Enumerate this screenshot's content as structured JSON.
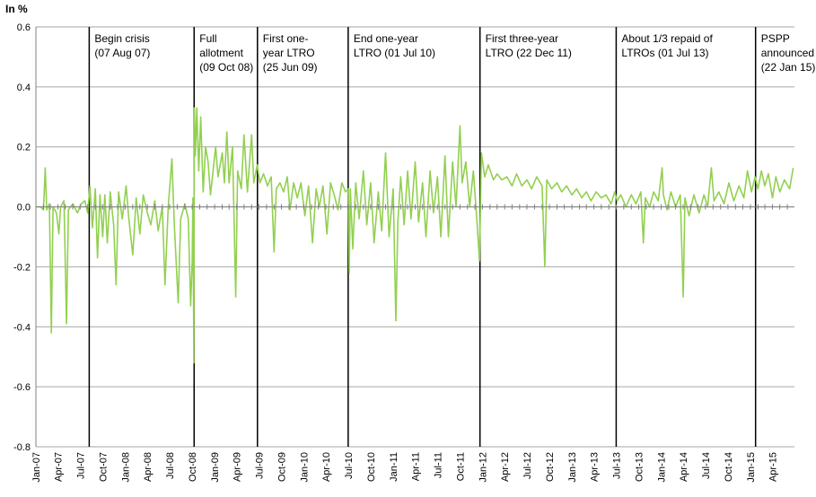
{
  "chart_data": {
    "type": "line",
    "unit_label": "In %",
    "title": "",
    "xlabel": "",
    "ylabel": "",
    "ylim": [
      -0.8,
      0.6
    ],
    "y_ticks": [
      "0.6",
      "0.4",
      "0.2",
      "0.0",
      "-0.2",
      "-0.4",
      "-0.6",
      "-0.8"
    ],
    "x_range": [
      "2007-01-01",
      "2015-06-30"
    ],
    "x_tick_labels": [
      "Jan-07",
      "Apr-07",
      "Jul-07",
      "Oct-07",
      "Jan-08",
      "Apr-08",
      "Jul-08",
      "Oct-08",
      "Jan-09",
      "Apr-09",
      "Jul-09",
      "Oct-09",
      "Jan-10",
      "Apr-10",
      "Jul-10",
      "Oct-10",
      "Jan-11",
      "Apr-11",
      "Jul-11",
      "Oct-11",
      "Jan-12",
      "Apr-12",
      "Jul-12",
      "Oct-12",
      "Jan-13",
      "Apr-13",
      "Jul-13",
      "Oct-13",
      "Jan-14",
      "Apr-14",
      "Jul-14",
      "Oct-14",
      "Jan-15",
      "Apr-15"
    ],
    "grid": true,
    "legend": "none",
    "line_color": "#92d050",
    "events": [
      {
        "date": "2007-08-07",
        "lines": [
          "Begin crisis",
          "(07 Aug 07)"
        ]
      },
      {
        "date": "2008-10-09",
        "lines": [
          "Full",
          "allotment",
          "(09 Oct 08)"
        ]
      },
      {
        "date": "2009-06-25",
        "lines": [
          "First one-",
          "year LTRO",
          "(25 Jun 09)"
        ]
      },
      {
        "date": "2010-07-01",
        "lines": [
          "End one-year",
          "LTRO (01 Jul 10)"
        ]
      },
      {
        "date": "2011-12-22",
        "lines": [
          "First three-year",
          "LTRO (22 Dec 11)"
        ]
      },
      {
        "date": "2013-07-01",
        "lines": [
          "About 1/3 repaid of",
          "LTROs (01 Jul 13)"
        ]
      },
      {
        "date": "2015-01-22",
        "lines": [
          "PSPP",
          "announced",
          "(22 Jan 15)"
        ]
      }
    ],
    "series": [
      {
        "name": "",
        "points": [
          [
            "2007-01-05",
            0.0
          ],
          [
            "2007-01-20",
            0.0
          ],
          [
            "2007-02-01",
            -0.01
          ],
          [
            "2007-02-08",
            0.13
          ],
          [
            "2007-02-14",
            -0.01
          ],
          [
            "2007-02-25",
            0.01
          ],
          [
            "2007-03-05",
            -0.42
          ],
          [
            "2007-03-12",
            0.0
          ],
          [
            "2007-03-26",
            -0.02
          ],
          [
            "2007-04-05",
            -0.09
          ],
          [
            "2007-04-12",
            0.0
          ],
          [
            "2007-04-26",
            0.02
          ],
          [
            "2007-05-06",
            -0.39
          ],
          [
            "2007-05-14",
            -0.01
          ],
          [
            "2007-06-01",
            0.01
          ],
          [
            "2007-06-20",
            -0.02
          ],
          [
            "2007-07-05",
            0.01
          ],
          [
            "2007-07-20",
            0.02
          ],
          [
            "2007-08-01",
            -0.02
          ],
          [
            "2007-08-10",
            0.07
          ],
          [
            "2007-08-20",
            -0.07
          ],
          [
            "2007-09-01",
            0.06
          ],
          [
            "2007-09-10",
            -0.17
          ],
          [
            "2007-09-20",
            0.04
          ],
          [
            "2007-10-01",
            -0.1
          ],
          [
            "2007-10-10",
            0.04
          ],
          [
            "2007-10-20",
            -0.12
          ],
          [
            "2007-11-01",
            0.05
          ],
          [
            "2007-11-15",
            -0.06
          ],
          [
            "2007-11-25",
            -0.26
          ],
          [
            "2007-12-05",
            0.05
          ],
          [
            "2007-12-20",
            -0.04
          ],
          [
            "2008-01-05",
            0.07
          ],
          [
            "2008-01-15",
            -0.03
          ],
          [
            "2008-02-01",
            -0.16
          ],
          [
            "2008-02-15",
            0.03
          ],
          [
            "2008-03-01",
            -0.09
          ],
          [
            "2008-03-15",
            0.04
          ],
          [
            "2008-04-01",
            -0.02
          ],
          [
            "2008-04-15",
            -0.06
          ],
          [
            "2008-05-01",
            0.02
          ],
          [
            "2008-05-15",
            -0.08
          ],
          [
            "2008-06-01",
            0.0
          ],
          [
            "2008-06-12",
            -0.26
          ],
          [
            "2008-06-25",
            0.0
          ],
          [
            "2008-07-10",
            0.16
          ],
          [
            "2008-07-20",
            -0.06
          ],
          [
            "2008-08-05",
            -0.32
          ],
          [
            "2008-08-15",
            -0.04
          ],
          [
            "2008-09-01",
            0.01
          ],
          [
            "2008-09-15",
            -0.04
          ],
          [
            "2008-09-25",
            -0.33
          ],
          [
            "2008-10-01",
            -0.18
          ],
          [
            "2008-10-04",
            0.03
          ],
          [
            "2008-10-08",
            -0.52
          ],
          [
            "2008-10-10",
            0.33
          ],
          [
            "2008-10-14",
            0.17
          ],
          [
            "2008-10-20",
            0.33
          ],
          [
            "2008-10-28",
            0.12
          ],
          [
            "2008-11-05",
            0.3
          ],
          [
            "2008-11-15",
            0.05
          ],
          [
            "2008-11-25",
            0.2
          ],
          [
            "2008-12-05",
            0.15
          ],
          [
            "2008-12-15",
            0.04
          ],
          [
            "2009-01-05",
            0.2
          ],
          [
            "2009-01-15",
            0.1
          ],
          [
            "2009-02-01",
            0.18
          ],
          [
            "2009-02-10",
            0.08
          ],
          [
            "2009-02-20",
            0.25
          ],
          [
            "2009-03-01",
            0.08
          ],
          [
            "2009-03-15",
            0.2
          ],
          [
            "2009-03-28",
            -0.3
          ],
          [
            "2009-04-05",
            0.12
          ],
          [
            "2009-04-20",
            0.06
          ],
          [
            "2009-05-01",
            0.24
          ],
          [
            "2009-05-15",
            0.05
          ],
          [
            "2009-06-01",
            0.24
          ],
          [
            "2009-06-10",
            0.08
          ],
          [
            "2009-06-24",
            0.14
          ],
          [
            "2009-07-05",
            0.08
          ],
          [
            "2009-07-20",
            0.11
          ],
          [
            "2009-08-05",
            0.07
          ],
          [
            "2009-08-20",
            0.1
          ],
          [
            "2009-09-01",
            -0.15
          ],
          [
            "2009-09-10",
            0.06
          ],
          [
            "2009-09-25",
            0.08
          ],
          [
            "2009-10-10",
            0.05
          ],
          [
            "2009-10-25",
            0.1
          ],
          [
            "2009-11-05",
            -0.01
          ],
          [
            "2009-11-20",
            0.08
          ],
          [
            "2009-12-05",
            0.03
          ],
          [
            "2009-12-20",
            0.08
          ],
          [
            "2010-01-05",
            -0.03
          ],
          [
            "2010-01-20",
            0.07
          ],
          [
            "2010-02-05",
            -0.12
          ],
          [
            "2010-02-20",
            0.06
          ],
          [
            "2010-03-05",
            0.0
          ],
          [
            "2010-03-20",
            0.07
          ],
          [
            "2010-04-05",
            -0.09
          ],
          [
            "2010-04-20",
            0.08
          ],
          [
            "2010-05-05",
            0.04
          ],
          [
            "2010-05-20",
            -0.01
          ],
          [
            "2010-06-05",
            0.08
          ],
          [
            "2010-06-20",
            0.05
          ],
          [
            "2010-07-01",
            0.06
          ],
          [
            "2010-07-05",
            -0.22
          ],
          [
            "2010-07-10",
            0.06
          ],
          [
            "2010-07-20",
            -0.14
          ],
          [
            "2010-08-01",
            0.08
          ],
          [
            "2010-08-15",
            -0.04
          ],
          [
            "2010-09-01",
            0.12
          ],
          [
            "2010-09-15",
            -0.06
          ],
          [
            "2010-10-01",
            0.08
          ],
          [
            "2010-10-15",
            -0.12
          ],
          [
            "2010-11-01",
            0.05
          ],
          [
            "2010-11-15",
            -0.08
          ],
          [
            "2010-12-01",
            0.18
          ],
          [
            "2010-12-15",
            -0.1
          ],
          [
            "2011-01-01",
            0.06
          ],
          [
            "2011-01-12",
            -0.38
          ],
          [
            "2011-01-20",
            -0.05
          ],
          [
            "2011-02-01",
            0.1
          ],
          [
            "2011-02-15",
            -0.06
          ],
          [
            "2011-03-01",
            0.12
          ],
          [
            "2011-03-15",
            -0.04
          ],
          [
            "2011-04-01",
            0.15
          ],
          [
            "2011-04-15",
            -0.05
          ],
          [
            "2011-05-01",
            0.08
          ],
          [
            "2011-05-15",
            -0.1
          ],
          [
            "2011-06-01",
            0.12
          ],
          [
            "2011-06-15",
            -0.02
          ],
          [
            "2011-07-01",
            0.1
          ],
          [
            "2011-07-15",
            -0.1
          ],
          [
            "2011-08-01",
            0.17
          ],
          [
            "2011-08-15",
            -0.1
          ],
          [
            "2011-09-01",
            0.15
          ],
          [
            "2011-09-15",
            0.0
          ],
          [
            "2011-10-01",
            0.27
          ],
          [
            "2011-10-10",
            0.08
          ],
          [
            "2011-10-25",
            0.15
          ],
          [
            "2011-11-10",
            0.0
          ],
          [
            "2011-11-25",
            0.12
          ],
          [
            "2011-12-10",
            -0.05
          ],
          [
            "2011-12-20",
            -0.18
          ],
          [
            "2011-12-28",
            0.18
          ],
          [
            "2012-01-10",
            0.1
          ],
          [
            "2012-01-25",
            0.14
          ],
          [
            "2012-02-15",
            0.09
          ],
          [
            "2012-03-01",
            0.11
          ],
          [
            "2012-03-20",
            0.09
          ],
          [
            "2012-04-10",
            0.1
          ],
          [
            "2012-05-01",
            0.07
          ],
          [
            "2012-05-20",
            0.11
          ],
          [
            "2012-06-10",
            0.07
          ],
          [
            "2012-07-01",
            0.09
          ],
          [
            "2012-07-20",
            0.06
          ],
          [
            "2012-08-10",
            0.1
          ],
          [
            "2012-09-01",
            0.07
          ],
          [
            "2012-09-12",
            -0.2
          ],
          [
            "2012-09-20",
            0.09
          ],
          [
            "2012-10-10",
            0.06
          ],
          [
            "2012-11-01",
            0.08
          ],
          [
            "2012-11-20",
            0.05
          ],
          [
            "2012-12-10",
            0.07
          ],
          [
            "2013-01-01",
            0.04
          ],
          [
            "2013-01-20",
            0.06
          ],
          [
            "2013-02-10",
            0.03
          ],
          [
            "2013-03-01",
            0.05
          ],
          [
            "2013-03-20",
            0.02
          ],
          [
            "2013-04-10",
            0.05
          ],
          [
            "2013-05-01",
            0.03
          ],
          [
            "2013-05-20",
            0.04
          ],
          [
            "2013-06-10",
            0.01
          ],
          [
            "2013-06-25",
            0.05
          ],
          [
            "2013-07-05",
            0.02
          ],
          [
            "2013-07-20",
            0.04
          ],
          [
            "2013-08-10",
            0.0
          ],
          [
            "2013-09-01",
            0.04
          ],
          [
            "2013-09-20",
            0.01
          ],
          [
            "2013-10-10",
            0.05
          ],
          [
            "2013-10-20",
            -0.12
          ],
          [
            "2013-10-28",
            0.03
          ],
          [
            "2013-11-15",
            0.0
          ],
          [
            "2013-12-01",
            0.05
          ],
          [
            "2013-12-20",
            0.02
          ],
          [
            "2014-01-05",
            0.13
          ],
          [
            "2014-01-10",
            0.04
          ],
          [
            "2014-01-25",
            -0.01
          ],
          [
            "2014-02-10",
            0.05
          ],
          [
            "2014-03-01",
            0.0
          ],
          [
            "2014-03-20",
            0.04
          ],
          [
            "2014-04-01",
            -0.3
          ],
          [
            "2014-04-08",
            0.03
          ],
          [
            "2014-04-25",
            -0.03
          ],
          [
            "2014-05-15",
            0.04
          ],
          [
            "2014-06-05",
            -0.02
          ],
          [
            "2014-06-25",
            0.04
          ],
          [
            "2014-07-10",
            0.0
          ],
          [
            "2014-07-25",
            0.13
          ],
          [
            "2014-08-05",
            0.02
          ],
          [
            "2014-08-25",
            0.05
          ],
          [
            "2014-09-15",
            0.01
          ],
          [
            "2014-10-05",
            0.08
          ],
          [
            "2014-10-25",
            0.02
          ],
          [
            "2014-11-15",
            0.07
          ],
          [
            "2014-12-05",
            0.03
          ],
          [
            "2014-12-20",
            0.12
          ],
          [
            "2015-01-05",
            0.05
          ],
          [
            "2015-01-20",
            0.1
          ],
          [
            "2015-02-01",
            0.06
          ],
          [
            "2015-02-15",
            0.12
          ],
          [
            "2015-03-01",
            0.07
          ],
          [
            "2015-03-15",
            0.11
          ],
          [
            "2015-04-01",
            0.03
          ],
          [
            "2015-04-15",
            0.1
          ],
          [
            "2015-05-01",
            0.05
          ],
          [
            "2015-05-20",
            0.09
          ],
          [
            "2015-06-10",
            0.06
          ],
          [
            "2015-06-25",
            0.13
          ]
        ]
      }
    ]
  }
}
